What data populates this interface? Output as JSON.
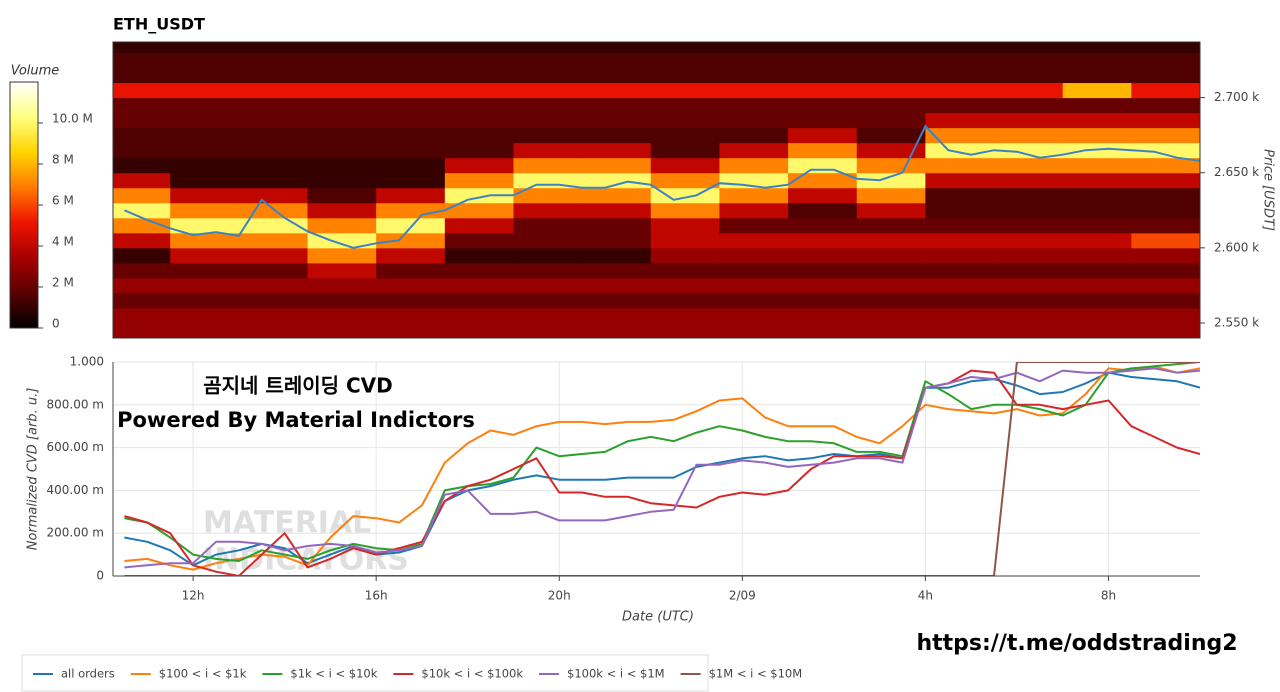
{
  "chart_data": [
    {
      "type": "heatmap",
      "title": "ETH_USDT",
      "xlim": [
        10.25,
        34
      ],
      "ylim": [
        2540,
        2737
      ],
      "yticks": [
        {
          "value": 2550,
          "label": "2.550 k"
        },
        {
          "value": 2600,
          "label": "2.600 k"
        },
        {
          "value": 2650,
          "label": "2.650 k"
        },
        {
          "value": 2700,
          "label": "2.700 k"
        }
      ],
      "ylabel": "Price [USDT]",
      "x_edges": [
        10,
        11.5,
        13,
        14.5,
        16,
        17.5,
        19,
        20.5,
        22,
        23.5,
        25,
        26.5,
        28,
        29.5,
        31,
        32.5,
        34
      ],
      "y_edges": [
        2540,
        2550,
        2560,
        2570,
        2580,
        2590,
        2600,
        2610,
        2620,
        2630,
        2640,
        2650,
        2660,
        2670,
        2680,
        2690,
        2700,
        2710,
        2720,
        2730,
        2740
      ],
      "z": [
        [
          3,
          3,
          3,
          3,
          3,
          3,
          3,
          3,
          3,
          3,
          3,
          3,
          3,
          3,
          3,
          3
        ],
        [
          3,
          3,
          3,
          3,
          3,
          3,
          3,
          3,
          3,
          3,
          3,
          3,
          3,
          3,
          3,
          3
        ],
        [
          2,
          2,
          2,
          2,
          2,
          2,
          2,
          2,
          2,
          2,
          2,
          2,
          2,
          2,
          2,
          2
        ],
        [
          3,
          3,
          3,
          3,
          3,
          3,
          3,
          3,
          3,
          3,
          3,
          3,
          3,
          3,
          3,
          3
        ],
        [
          2,
          2,
          2,
          4,
          2,
          2,
          2,
          2,
          2,
          2,
          2,
          2,
          2,
          2,
          2,
          2
        ],
        [
          1,
          4,
          4,
          7,
          4,
          1,
          1,
          1,
          3,
          3,
          3,
          3,
          3,
          3,
          3,
          3
        ],
        [
          4,
          7,
          7,
          10,
          7,
          2,
          2,
          2,
          4,
          4,
          4,
          4,
          4,
          4,
          4,
          6
        ],
        [
          7,
          10,
          10,
          7,
          10,
          4,
          2,
          2,
          4,
          2,
          2,
          2,
          2,
          2,
          2,
          2
        ],
        [
          10,
          7,
          7,
          4,
          7,
          7,
          4,
          4,
          7,
          4,
          1.5,
          4,
          1.5,
          1.5,
          1.5,
          1.5
        ],
        [
          7,
          4,
          4,
          1.5,
          4,
          10,
          7,
          7,
          10,
          7,
          4,
          7,
          1.5,
          1.5,
          1.5,
          1.5
        ],
        [
          4,
          1,
          1,
          1,
          1,
          7,
          10,
          10,
          7,
          10,
          7,
          10,
          4,
          4,
          4,
          4
        ],
        [
          1,
          1,
          1,
          1,
          1,
          4,
          7,
          7,
          4,
          7,
          10,
          7,
          7,
          7,
          7,
          7
        ],
        [
          1.5,
          1.5,
          1.5,
          1.5,
          1.5,
          1.5,
          4,
          4,
          1.5,
          4,
          7,
          4,
          10,
          10,
          10,
          10
        ],
        [
          1.5,
          1.5,
          1.5,
          1.5,
          1.5,
          1.5,
          1.5,
          1.5,
          1.5,
          1.5,
          4,
          1.5,
          7,
          7,
          7,
          7
        ],
        [
          2,
          2,
          2,
          2,
          2,
          2,
          2,
          2,
          2,
          2,
          2,
          2,
          4,
          4,
          4,
          4
        ],
        [
          2,
          2,
          2,
          2,
          2,
          2,
          2,
          2,
          2,
          2,
          2,
          2,
          2,
          2,
          2,
          2
        ],
        [
          5,
          5,
          5,
          5,
          5,
          5,
          5,
          5,
          5,
          5,
          5,
          5,
          5,
          5,
          8,
          5
        ],
        [
          1.5,
          1.5,
          1.5,
          1.5,
          1.5,
          1.5,
          1.5,
          1.5,
          1.5,
          1.5,
          1.5,
          1.5,
          1.5,
          1.5,
          1.5,
          1.5
        ],
        [
          1.5,
          1.5,
          1.5,
          1.5,
          1.5,
          1.5,
          1.5,
          1.5,
          1.5,
          1.5,
          1.5,
          1.5,
          1.5,
          1.5,
          1.5,
          1.5
        ],
        [
          1,
          1,
          1,
          1,
          1,
          1,
          1,
          1,
          1,
          1,
          1,
          1,
          1,
          1,
          1,
          1
        ]
      ],
      "zlim": [
        0,
        12
      ],
      "colorbar_title": "Volume",
      "colorbar_ticks": [
        0,
        {
          "value": 2,
          "label": "2 M"
        },
        {
          "value": 4,
          "label": "4 M"
        },
        {
          "value": 6,
          "label": "6 M"
        },
        {
          "value": 8,
          "label": "8 M"
        },
        {
          "value": 10,
          "label": "10.0 M"
        }
      ],
      "colorscale": [
        "#000000",
        "#5a0000",
        "#a80000",
        "#ee1500",
        "#ff7a00",
        "#ffd400",
        "#ffff80",
        "#ffffff"
      ],
      "x": [
        10.5,
        11,
        11.5,
        12,
        12.5,
        13,
        13.5,
        14,
        14.5,
        15,
        15.5,
        16,
        16.5,
        17,
        17.5,
        18,
        18.5,
        19,
        19.5,
        20,
        20.5,
        21,
        21.5,
        22,
        22.5,
        23,
        23.5,
        24,
        24.5,
        25,
        25.5,
        26,
        26.5,
        27,
        27.5,
        28,
        28.5,
        29,
        29.5,
        30,
        30.5,
        31,
        31.5,
        32,
        32.5,
        33,
        33.5,
        34
      ],
      "values": [
        2625,
        2618.5,
        2613,
        2608.5,
        2610.5,
        2608,
        2632,
        2620,
        2611,
        2605,
        2600,
        2603,
        2605,
        2622,
        2625,
        2632,
        2635,
        2635,
        2642,
        2642,
        2640,
        2640,
        2644,
        2642,
        2632,
        2635,
        2643,
        2642,
        2640,
        2642,
        2652,
        2652,
        2646,
        2645,
        2650,
        2681,
        2665,
        2662,
        2665,
        2664,
        2660,
        2662,
        2665,
        2666,
        2665,
        2664,
        2660,
        2658
      ],
      "line_color": "#3a84c6"
    },
    {
      "type": "line",
      "xlim": [
        10.25,
        34
      ],
      "ylim": [
        0,
        1
      ],
      "xticks": [
        {
          "value": 12,
          "label": "12h"
        },
        {
          "value": 16,
          "label": "16h"
        },
        {
          "value": 20,
          "label": "20h"
        },
        {
          "value": 24,
          "label": "2/09"
        },
        {
          "value": 28,
          "label": "4h"
        },
        {
          "value": 32,
          "label": "8h"
        }
      ],
      "yticks": [
        0,
        {
          "value": 0.2,
          "label": "200.00 m"
        },
        {
          "value": 0.4,
          "label": "400.00 m"
        },
        {
          "value": 0.6,
          "label": "600.00 m"
        },
        {
          "value": 0.8,
          "label": "800.00 m"
        },
        {
          "value": 1,
          "label": "1.000"
        }
      ],
      "xlabel": "Date (UTC)",
      "ylabel": "Normalized CVD [arb. u.]",
      "grid": true,
      "legend": "bottom-left",
      "annotations": [
        "곰지네 트레이딩 CVD",
        "Powered By Material Indictors"
      ],
      "watermark": [
        "MATERIAL",
        "INDICATORS"
      ],
      "x": [
        10.5,
        11,
        11.5,
        12,
        12.5,
        13,
        13.5,
        14,
        14.5,
        15,
        15.5,
        16,
        16.5,
        17,
        17.5,
        18,
        18.5,
        19,
        19.5,
        20,
        20.5,
        21,
        21.5,
        22,
        22.5,
        23,
        23.5,
        24,
        24.5,
        25,
        25.5,
        26,
        26.5,
        27,
        27.5,
        28,
        28.5,
        29,
        29.5,
        30,
        30.5,
        31,
        31.5,
        32,
        32.5,
        33,
        33.5,
        34
      ],
      "series": [
        {
          "name": "all orders",
          "color": "#1f77b4",
          "values": [
            0.18,
            0.16,
            0.12,
            0.05,
            0.1,
            0.12,
            0.15,
            0.13,
            0.06,
            0.1,
            0.14,
            0.1,
            0.11,
            0.14,
            0.35,
            0.4,
            0.42,
            0.45,
            0.47,
            0.45,
            0.45,
            0.45,
            0.46,
            0.46,
            0.46,
            0.51,
            0.53,
            0.55,
            0.56,
            0.54,
            0.55,
            0.57,
            0.56,
            0.57,
            0.55,
            0.88,
            0.88,
            0.91,
            0.92,
            0.89,
            0.85,
            0.86,
            0.9,
            0.95,
            0.93,
            0.92,
            0.91,
            0.88
          ]
        },
        {
          "name": "$100 < i < $1k",
          "color": "#ff7f0e",
          "values": [
            0.07,
            0.08,
            0.05,
            0.03,
            0.06,
            0.08,
            0.1,
            0.09,
            0.05,
            0.18,
            0.28,
            0.27,
            0.25,
            0.33,
            0.53,
            0.62,
            0.68,
            0.66,
            0.7,
            0.72,
            0.72,
            0.71,
            0.72,
            0.72,
            0.73,
            0.77,
            0.82,
            0.83,
            0.74,
            0.7,
            0.7,
            0.7,
            0.65,
            0.62,
            0.7,
            0.8,
            0.78,
            0.77,
            0.76,
            0.78,
            0.75,
            0.76,
            0.85,
            0.97,
            0.96,
            0.98,
            0.95,
            0.97
          ]
        },
        {
          "name": "$1k < i < $10k",
          "color": "#2ca02c",
          "values": [
            0.27,
            0.25,
            0.18,
            0.1,
            0.08,
            0.07,
            0.12,
            0.1,
            0.08,
            0.12,
            0.15,
            0.13,
            0.12,
            0.15,
            0.4,
            0.42,
            0.43,
            0.46,
            0.6,
            0.56,
            0.57,
            0.58,
            0.63,
            0.65,
            0.63,
            0.67,
            0.7,
            0.68,
            0.65,
            0.63,
            0.63,
            0.62,
            0.58,
            0.58,
            0.56,
            0.91,
            0.85,
            0.78,
            0.8,
            0.8,
            0.78,
            0.75,
            0.8,
            0.95,
            0.97,
            0.98,
            0.99,
            1.0
          ]
        },
        {
          "name": "$10k < i < $100k",
          "color": "#d62728",
          "values": [
            0.28,
            0.25,
            0.2,
            0.05,
            0.02,
            0,
            0.1,
            0.2,
            0.04,
            0.08,
            0.13,
            0.1,
            0.13,
            0.16,
            0.35,
            0.42,
            0.45,
            0.5,
            0.55,
            0.39,
            0.39,
            0.37,
            0.37,
            0.34,
            0.33,
            0.32,
            0.37,
            0.39,
            0.38,
            0.4,
            0.5,
            0.56,
            0.56,
            0.56,
            0.55,
            0.88,
            0.9,
            0.96,
            0.95,
            0.8,
            0.8,
            0.78,
            0.8,
            0.82,
            0.7,
            0.65,
            0.6,
            0.57
          ]
        },
        {
          "name": "$100k < i < $1M",
          "color": "#9467bd",
          "values": [
            0.04,
            0.05,
            0.06,
            0.06,
            0.16,
            0.16,
            0.15,
            0.12,
            0.14,
            0.15,
            0.14,
            0.11,
            0.12,
            0.14,
            0.38,
            0.4,
            0.29,
            0.29,
            0.3,
            0.26,
            0.26,
            0.26,
            0.28,
            0.3,
            0.31,
            0.52,
            0.52,
            0.54,
            0.53,
            0.51,
            0.52,
            0.53,
            0.55,
            0.55,
            0.53,
            0.88,
            0.9,
            0.93,
            0.92,
            0.95,
            0.91,
            0.96,
            0.95,
            0.95,
            0.96,
            0.97,
            0.95,
            0.96
          ]
        },
        {
          "name": "$1M < i < $10M",
          "color": "#8c564b",
          "values": [
            0,
            0,
            0,
            0,
            0,
            0,
            0,
            0,
            0,
            0,
            0,
            0,
            0,
            0,
            0,
            0,
            0,
            0,
            0,
            0,
            0,
            0,
            0,
            0,
            0,
            0,
            0,
            0,
            0,
            0,
            0,
            0,
            0,
            0,
            0,
            0,
            0,
            0,
            0,
            1,
            1,
            1,
            1,
            1,
            1,
            1,
            1,
            1
          ]
        }
      ]
    }
  ],
  "link": "https://t.me/oddstrading2"
}
